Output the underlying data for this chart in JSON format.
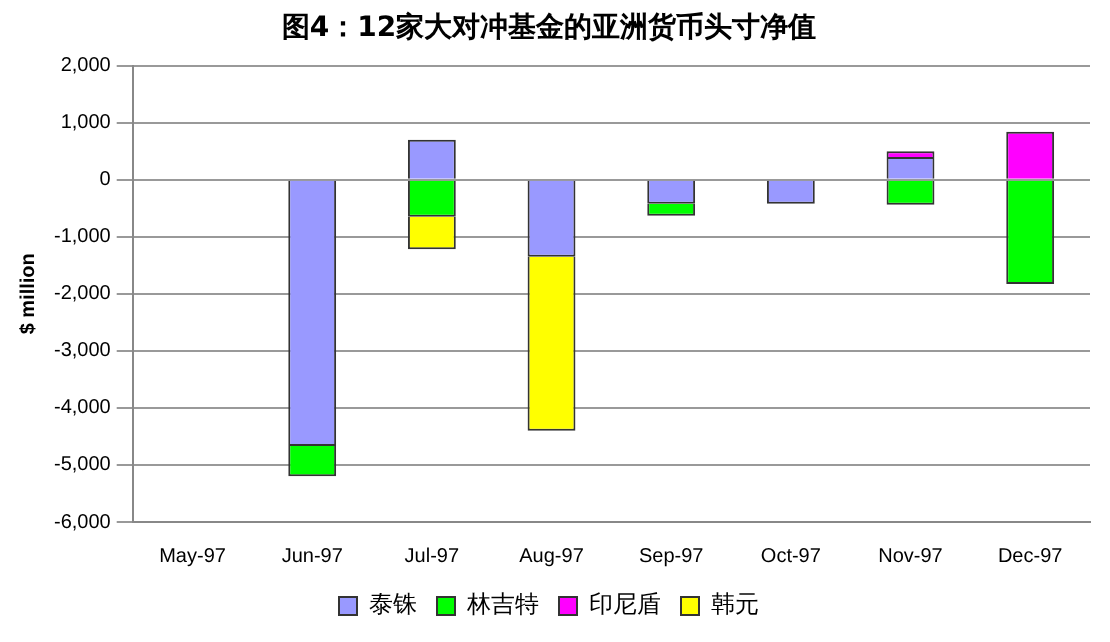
{
  "chart_data": {
    "type": "bar",
    "title": "图4：12家大对冲基金的亚洲货币头寸净值",
    "ylabel": "$ million",
    "categories": [
      "May-97",
      "Jun-97",
      "Jul-97",
      "Aug-97",
      "Sep-97",
      "Oct-97",
      "Nov-97",
      "Dec-97"
    ],
    "stacked": true,
    "series": [
      {
        "name": "泰铢",
        "color": "#9999ff",
        "values": [
          null,
          -4670,
          700,
          -1350,
          -420,
          -420,
          400,
          null
        ]
      },
      {
        "name": "林吉特",
        "color": "#00ff00",
        "values": [
          null,
          -530,
          -650,
          null,
          -210,
          null,
          -440,
          -1830
        ]
      },
      {
        "name": "印尼盾",
        "color": "#ff00ff",
        "values": [
          null,
          null,
          null,
          null,
          null,
          null,
          100,
          840
        ]
      },
      {
        "name": "韩元",
        "color": "#ffff00",
        "values": [
          null,
          null,
          -570,
          -3050,
          null,
          null,
          null,
          null
        ]
      }
    ],
    "ylim": [
      -6000,
      2000
    ],
    "yticks": [
      {
        "value": -6000,
        "label": "-6,000"
      },
      {
        "value": -5000,
        "label": "-5,000"
      },
      {
        "value": -4000,
        "label": "-4,000"
      },
      {
        "value": -3000,
        "label": "-3,000"
      },
      {
        "value": -2000,
        "label": "-2,000"
      },
      {
        "value": -1000,
        "label": "-1,000"
      },
      0,
      {
        "value": 1000,
        "label": "1,000"
      },
      {
        "value": 2000,
        "label": "2,000"
      }
    ],
    "grid": "y",
    "legend": "bottom"
  }
}
